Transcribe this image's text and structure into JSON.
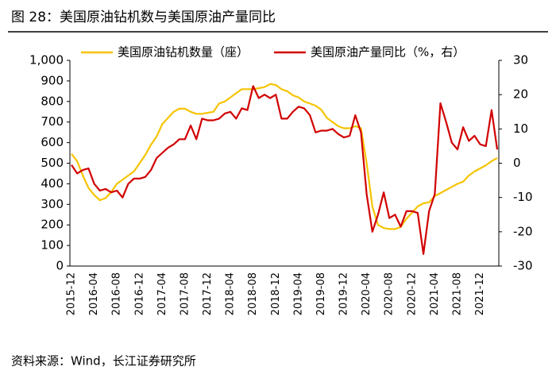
{
  "chart_data": {
    "type": "line",
    "title": "图 28：美国原油钻机数与美国原油产量同比",
    "source": "资料来源：Wind，长江证券研究所",
    "categories": [
      "2015-12",
      null,
      null,
      null,
      "2016-04",
      null,
      null,
      null,
      "2016-08",
      null,
      null,
      null,
      "2016-12",
      null,
      null,
      null,
      "2017-04",
      null,
      null,
      null,
      "2017-08",
      null,
      null,
      null,
      "2017-12",
      null,
      null,
      null,
      "2018-04",
      null,
      null,
      null,
      "2018-08",
      null,
      null,
      null,
      "2018-12",
      null,
      null,
      null,
      "2019-04",
      null,
      null,
      null,
      "2019-08",
      null,
      null,
      null,
      "2019-12",
      null,
      null,
      null,
      "2020-04",
      null,
      null,
      null,
      "2020-08",
      null,
      null,
      null,
      "2020-12",
      null,
      null,
      null,
      "2021-04",
      null,
      null,
      null,
      "2021-08",
      null,
      null,
      null,
      "2021-12",
      null,
      null,
      null
    ],
    "series": [
      {
        "name": "美国原油钻机数量（座）",
        "color": "#f5c400",
        "values": [
          545,
          510,
          440,
          380,
          345,
          320,
          330,
          360,
          400,
          420,
          440,
          460,
          500,
          540,
          590,
          630,
          690,
          720,
          750,
          765,
          765,
          750,
          740,
          740,
          745,
          750,
          790,
          800,
          820,
          840,
          860,
          860,
          860,
          865,
          870,
          885,
          880,
          860,
          850,
          830,
          820,
          800,
          790,
          780,
          760,
          720,
          700,
          680,
          670,
          670,
          680,
          670,
          500,
          290,
          200,
          185,
          180,
          180,
          190,
          230,
          260,
          290,
          305,
          310,
          340,
          355,
          370,
          385,
          400,
          410,
          440,
          460,
          475,
          490,
          510,
          525
        ]
      },
      {
        "name": "美国原油产量同比（%，右）",
        "color": "#d10000",
        "axis": "y2",
        "values": [
          -0.5,
          -3,
          -2,
          -1.5,
          -6,
          -8,
          -7.5,
          -8.5,
          -8,
          -10,
          -6,
          -4.5,
          -4.5,
          -4,
          -2,
          1.5,
          3,
          4.5,
          5.5,
          7,
          7,
          11,
          7,
          13,
          12.5,
          12.5,
          13,
          14.5,
          15,
          13,
          16,
          15.5,
          22.5,
          19,
          20,
          19,
          20,
          13,
          13,
          15,
          16.5,
          16,
          14,
          9,
          9.5,
          9.5,
          10,
          8.5,
          7.5,
          8,
          14,
          9,
          -9,
          -20,
          -15,
          -8.5,
          -16,
          -15,
          -18.5,
          -14,
          -14,
          -14.5,
          -26.5,
          -14,
          -9,
          17.5,
          12,
          6,
          4,
          10.5,
          6.5,
          8,
          5.5,
          5,
          15.5,
          4
        ]
      }
    ],
    "ylim": [
      0,
      1000
    ],
    "yticks": [
      0,
      100,
      200,
      300,
      400,
      500,
      600,
      700,
      800,
      900,
      {
        "value": 1000,
        "label": "1,000"
      }
    ],
    "y2lim": [
      -30,
      30
    ],
    "y2ticks": [
      -30,
      -20,
      -10,
      0,
      10,
      20,
      30
    ],
    "legend": "top"
  }
}
